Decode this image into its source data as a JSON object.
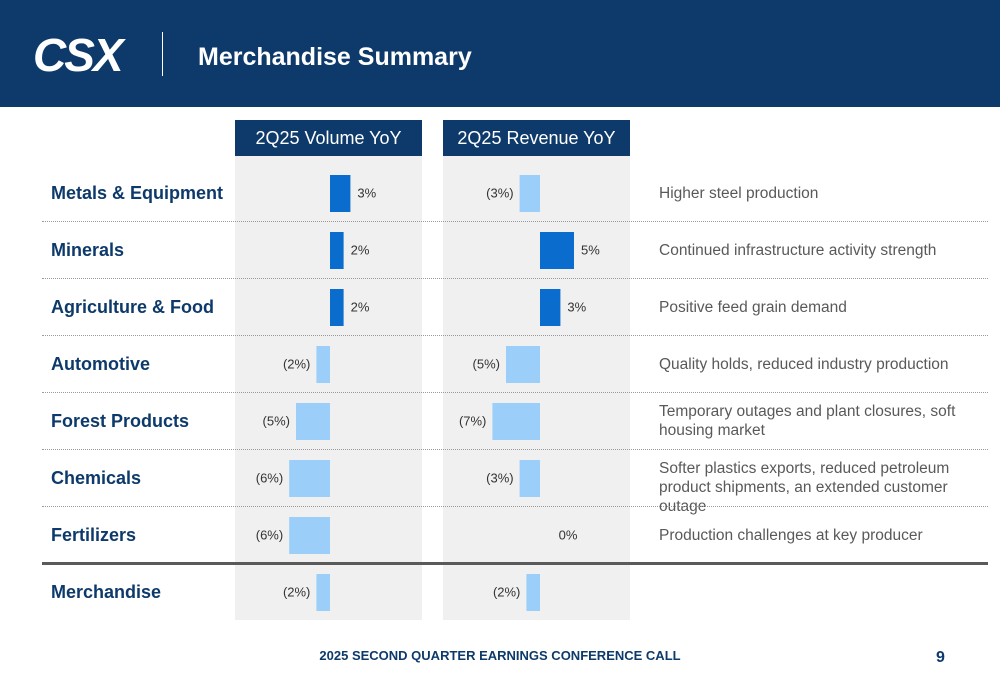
{
  "header": {
    "logo_text": "CSX",
    "title": "Merchandise Summary"
  },
  "chart_data": {
    "type": "bar",
    "orientation": "horizontal",
    "categories": [
      "Metals & Equipment",
      "Minerals",
      "Agriculture & Food",
      "Automotive",
      "Forest Products",
      "Chemicals",
      "Fertilizers",
      "Merchandise"
    ],
    "series": [
      {
        "name": "2Q25 Volume YoY",
        "values": [
          3,
          2,
          2,
          -2,
          -5,
          -6,
          -6,
          -2
        ],
        "labels": [
          "3%",
          "2%",
          "2%",
          "(2%)",
          "(5%)",
          "(6%)",
          "(6%)",
          "(2%)"
        ]
      },
      {
        "name": "2Q25 Revenue YoY",
        "values": [
          -3,
          5,
          3,
          -5,
          -7,
          -3,
          0,
          -2
        ],
        "labels": [
          "(3%)",
          "5%",
          "3%",
          "(5%)",
          "(7%)",
          "(3%)",
          "0%",
          "(2%)"
        ]
      }
    ],
    "colors": {
      "positive": "#0a6ccc",
      "negative": "#9ccefa"
    }
  },
  "comments": [
    "Higher steel production",
    "Continued infrastructure activity strength",
    "Positive feed grain demand",
    "Quality holds, reduced industry production",
    "Temporary outages and plant closures, soft housing market",
    "Softer plastics exports, reduced petroleum product shipments, an extended customer outage",
    "Production challenges at key producer",
    ""
  ],
  "footer": {
    "text": "2025 SECOND QUARTER EARNINGS CONFERENCE CALL",
    "page": "9"
  }
}
